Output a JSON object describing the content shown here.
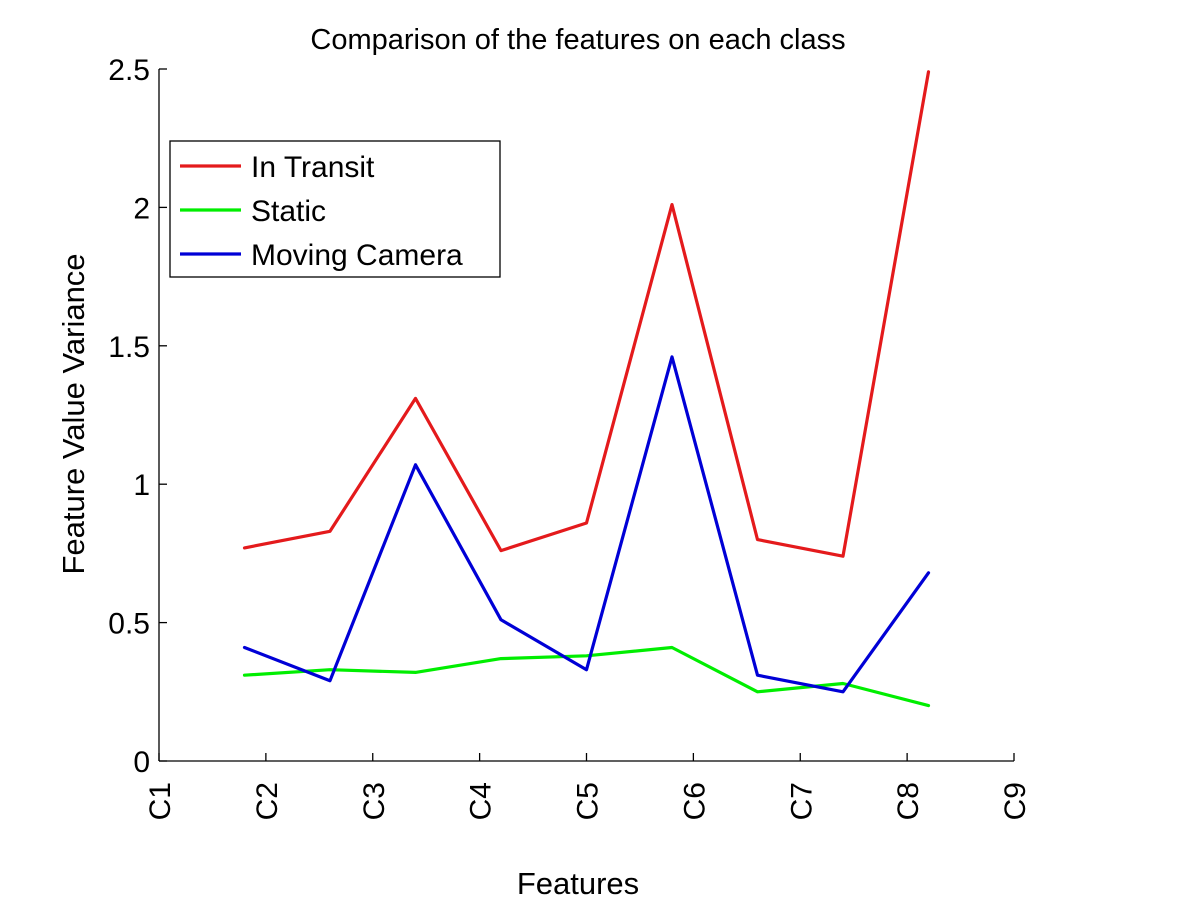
{
  "chart_data": {
    "type": "line",
    "title": "Comparison of the features on each class",
    "xlabel": "Features",
    "ylabel": "Feature Value Variance",
    "xlim": [
      0,
      10
    ],
    "ylim": [
      0,
      2.5
    ],
    "x_tick_values": [
      0,
      1.25,
      2.5,
      3.75,
      5,
      6.25,
      7.5,
      8.75,
      10
    ],
    "x_tick_labels": [
      "C1",
      "C2",
      "C3",
      "C4",
      "C5",
      "C6",
      "C7",
      "C8",
      "C9"
    ],
    "y_ticks": [
      0,
      0.5,
      1,
      1.5,
      2,
      2.5
    ],
    "y_tick_labels": [
      "0",
      "0.5",
      "1",
      "1.5",
      "2",
      "2.5"
    ],
    "x": [
      1,
      2,
      3,
      4,
      5,
      6,
      7,
      8,
      9
    ],
    "series": [
      {
        "name": "In Transit",
        "color": "#e41a1c",
        "values": [
          0.77,
          0.83,
          1.31,
          0.76,
          0.86,
          2.01,
          0.8,
          0.74,
          2.49
        ]
      },
      {
        "name": "Static",
        "color": "#00ee00",
        "values": [
          0.31,
          0.33,
          0.32,
          0.37,
          0.38,
          0.41,
          0.25,
          0.28,
          0.2
        ]
      },
      {
        "name": "Moving Camera",
        "color": "#0000d6",
        "values": [
          0.41,
          0.29,
          1.07,
          0.51,
          0.33,
          1.46,
          0.31,
          0.25,
          0.68
        ]
      }
    ],
    "grid": false,
    "legend": "top-left",
    "tick_direction": "in",
    "x_tick_label_rotation": -90
  }
}
